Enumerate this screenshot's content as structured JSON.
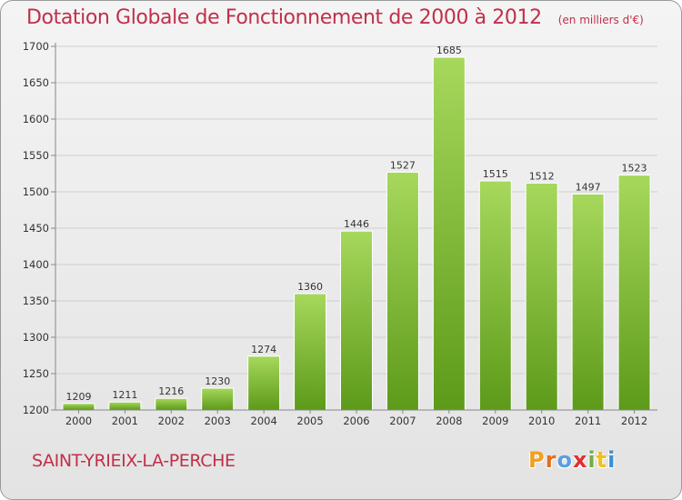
{
  "header": {
    "title": "Dotation Globale de Fonctionnement de 2000 à 2012",
    "unit": "(en milliers d'€)"
  },
  "footer": {
    "commune": "SAINT-YRIEIX-LA-PERCHE",
    "logo_letters": [
      "P",
      "r",
      "o",
      "x",
      "i",
      "t",
      "i"
    ],
    "logo_colors": [
      "#f0a020",
      "#e07020",
      "#5a9ee0",
      "#e03030",
      "#70b040",
      "#f0c020",
      "#3a8fd8"
    ]
  },
  "colors": {
    "bar_top": "#a6d85c",
    "bar_bottom": "#5d9a1a",
    "grid": "#cfcfcf",
    "axis": "#888888"
  },
  "chart_data": {
    "type": "bar",
    "title": "Dotation Globale de Fonctionnement de 2000 à 2012",
    "subtitle": "(en milliers d'€)",
    "xlabel": "",
    "ylabel": "",
    "categories": [
      "2000",
      "2001",
      "2002",
      "2003",
      "2004",
      "2005",
      "2006",
      "2007",
      "2008",
      "2009",
      "2010",
      "2011",
      "2012"
    ],
    "values": [
      1209,
      1211,
      1216,
      1230,
      1274,
      1360,
      1446,
      1527,
      1685,
      1515,
      1512,
      1497,
      1523
    ],
    "ylim": [
      1200,
      1700
    ],
    "yticks": [
      1200,
      1250,
      1300,
      1350,
      1400,
      1450,
      1500,
      1550,
      1600,
      1650,
      1700
    ],
    "grid": true,
    "legend": "none"
  }
}
